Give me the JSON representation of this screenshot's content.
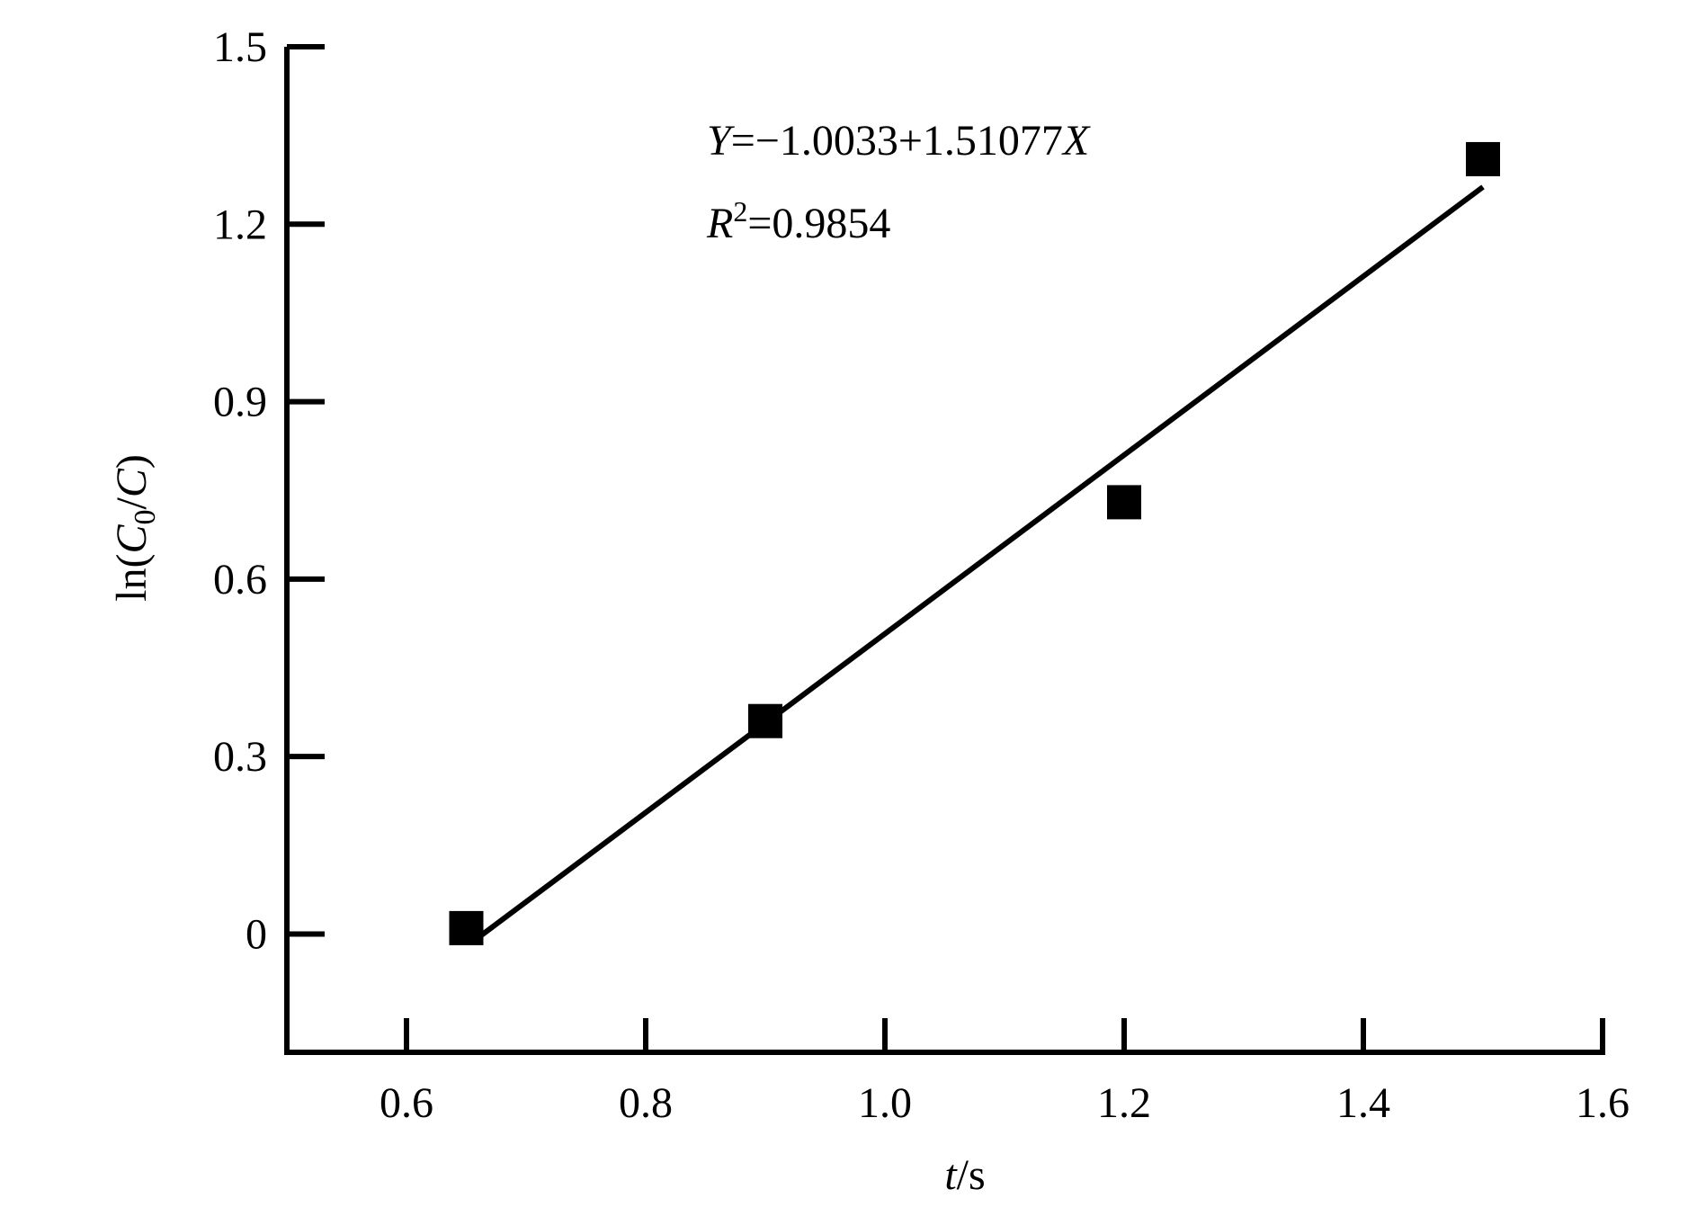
{
  "chart_data": {
    "type": "scatter",
    "x": [
      0.65,
      0.9,
      1.2,
      1.5
    ],
    "values": [
      0.01,
      0.36,
      0.73,
      1.31
    ],
    "color": "#000000",
    "fit": {
      "x": [
        0.66,
        1.5
      ],
      "values": [
        -0.006,
        1.263
      ]
    },
    "xlim": [
      0.5,
      1.6
    ],
    "xticks": [
      0.6,
      0.8,
      {
        "value": 1,
        "label": "1.0"
      },
      1.2,
      1.4,
      1.6
    ],
    "ylim": [
      -0.2,
      1.5
    ],
    "yticks": [
      0,
      0.3,
      0.6,
      0.9,
      1.2,
      1.5
    ],
    "x_label": {
      "italic": "t",
      "rest": "/s"
    },
    "y_label": {
      "pre": "ln(",
      "c0": "C",
      "sub": "0",
      "slash": "/",
      "c": "C",
      "post": ")"
    },
    "annotations": {
      "equation": {
        "y": "Y",
        "body": "=−1.0033+1.51077",
        "x": "X"
      },
      "r2": {
        "r": "R",
        "sup": "2",
        "body": "=0.9854"
      }
    }
  }
}
